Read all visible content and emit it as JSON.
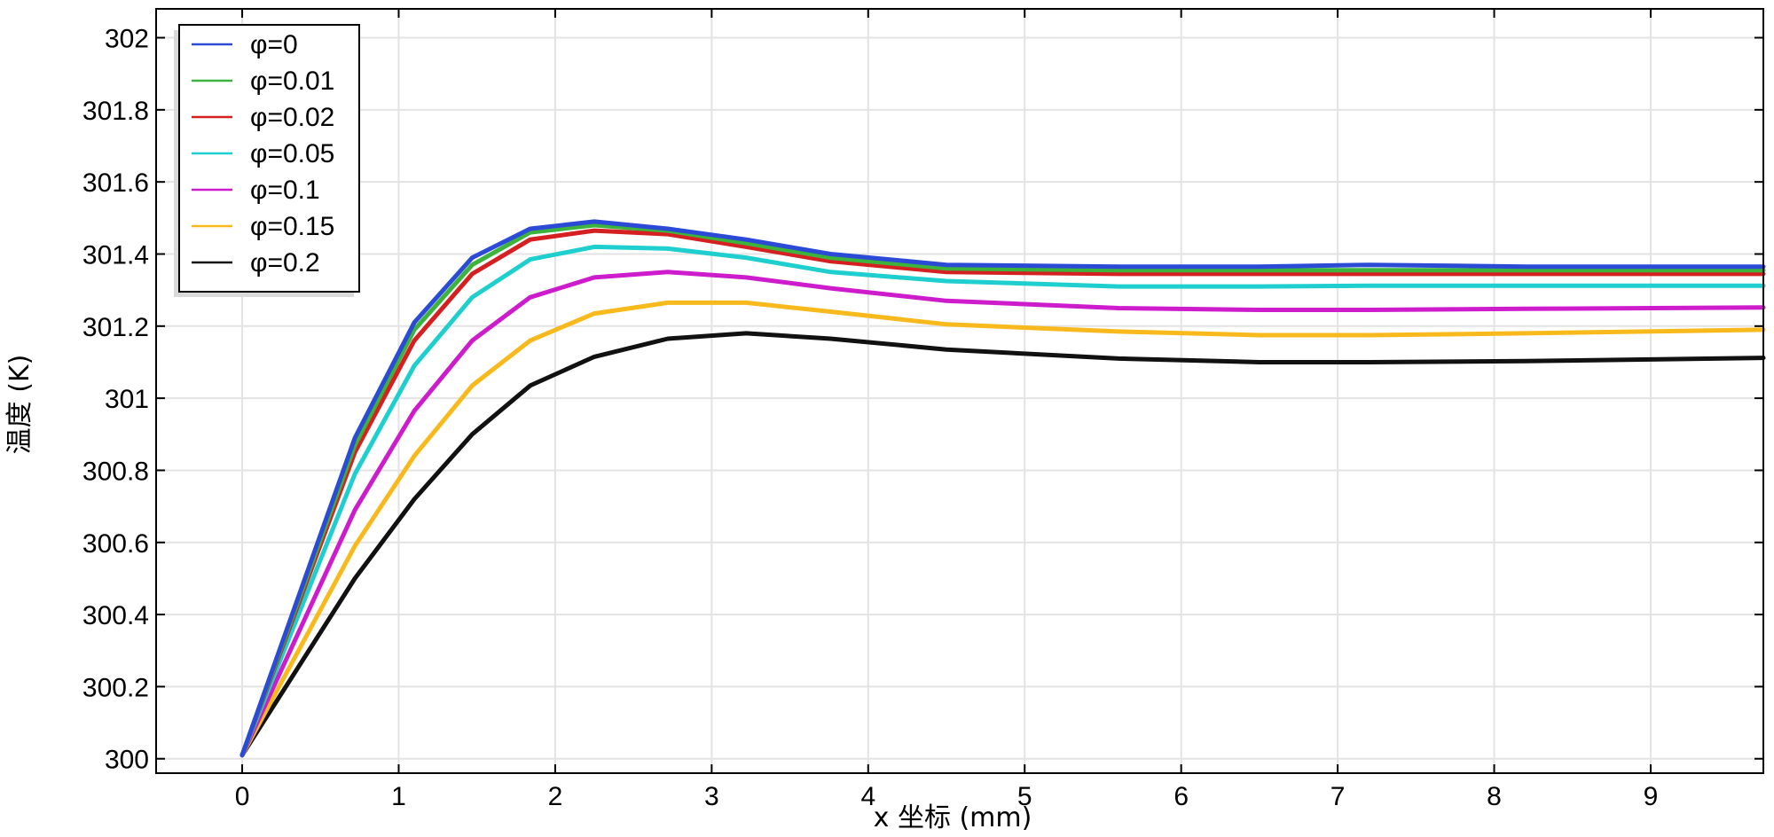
{
  "chart_data": {
    "type": "line",
    "title": "",
    "xlabel": "x 坐标 (mm)",
    "ylabel": "温度 (K)",
    "xlim": [
      -0.55,
      9.72
    ],
    "ylim": [
      299.96,
      302.08
    ],
    "xticks": [
      0,
      1,
      2,
      3,
      4,
      5,
      6,
      7,
      8,
      9
    ],
    "yticks": [
      300,
      300.2,
      300.4,
      300.6,
      300.8,
      301,
      301.2,
      301.4,
      301.6,
      301.8,
      302
    ],
    "ytick_labels": [
      "300",
      "300.2",
      "300.4",
      "300.6",
      "300.8",
      "301",
      "301.2",
      "301.4",
      "301.6",
      "301.8",
      "302"
    ],
    "grid": true,
    "legend_position": "top-left",
    "x": [
      0,
      0.72,
      1.1,
      1.47,
      1.84,
      2.25,
      2.72,
      3.22,
      3.76,
      4.5,
      5.6,
      6.5,
      7.2,
      8.2,
      9.72
    ],
    "series": [
      {
        "name": "φ=0",
        "color": "#2b4bd6",
        "values": [
          300.01,
          300.89,
          301.21,
          301.39,
          301.47,
          301.49,
          301.47,
          301.44,
          301.4,
          301.37,
          301.365,
          301.365,
          301.37,
          301.365,
          301.365
        ]
      },
      {
        "name": "φ=0.01",
        "color": "#3cb33c",
        "values": [
          300.01,
          300.87,
          301.19,
          301.37,
          301.46,
          301.48,
          301.465,
          301.43,
          301.39,
          301.36,
          301.355,
          301.355,
          301.355,
          301.355,
          301.355
        ]
      },
      {
        "name": "φ=0.02",
        "color": "#d42020",
        "values": [
          300.01,
          300.85,
          301.16,
          301.345,
          301.44,
          301.465,
          301.455,
          301.42,
          301.38,
          301.35,
          301.345,
          301.345,
          301.345,
          301.345,
          301.345
        ]
      },
      {
        "name": "φ=0.05",
        "color": "#1fcfcf",
        "values": [
          300.01,
          300.79,
          301.09,
          301.28,
          301.385,
          301.42,
          301.415,
          301.39,
          301.35,
          301.325,
          301.31,
          301.31,
          301.312,
          301.312,
          301.312
        ]
      },
      {
        "name": "φ=0.1",
        "color": "#cc1ccc",
        "values": [
          300.01,
          300.69,
          300.965,
          301.16,
          301.28,
          301.335,
          301.35,
          301.335,
          301.305,
          301.27,
          301.25,
          301.245,
          301.245,
          301.248,
          301.252
        ]
      },
      {
        "name": "φ=0.15",
        "color": "#f7b91c",
        "values": [
          300.01,
          300.59,
          300.84,
          301.035,
          301.16,
          301.235,
          301.265,
          301.265,
          301.24,
          301.205,
          301.185,
          301.175,
          301.175,
          301.18,
          301.19
        ]
      },
      {
        "name": "φ=0.2",
        "color": "#111111",
        "values": [
          300.01,
          300.5,
          300.72,
          300.9,
          301.035,
          301.115,
          301.165,
          301.18,
          301.165,
          301.135,
          301.11,
          301.1,
          301.1,
          301.103,
          301.112
        ]
      }
    ]
  }
}
